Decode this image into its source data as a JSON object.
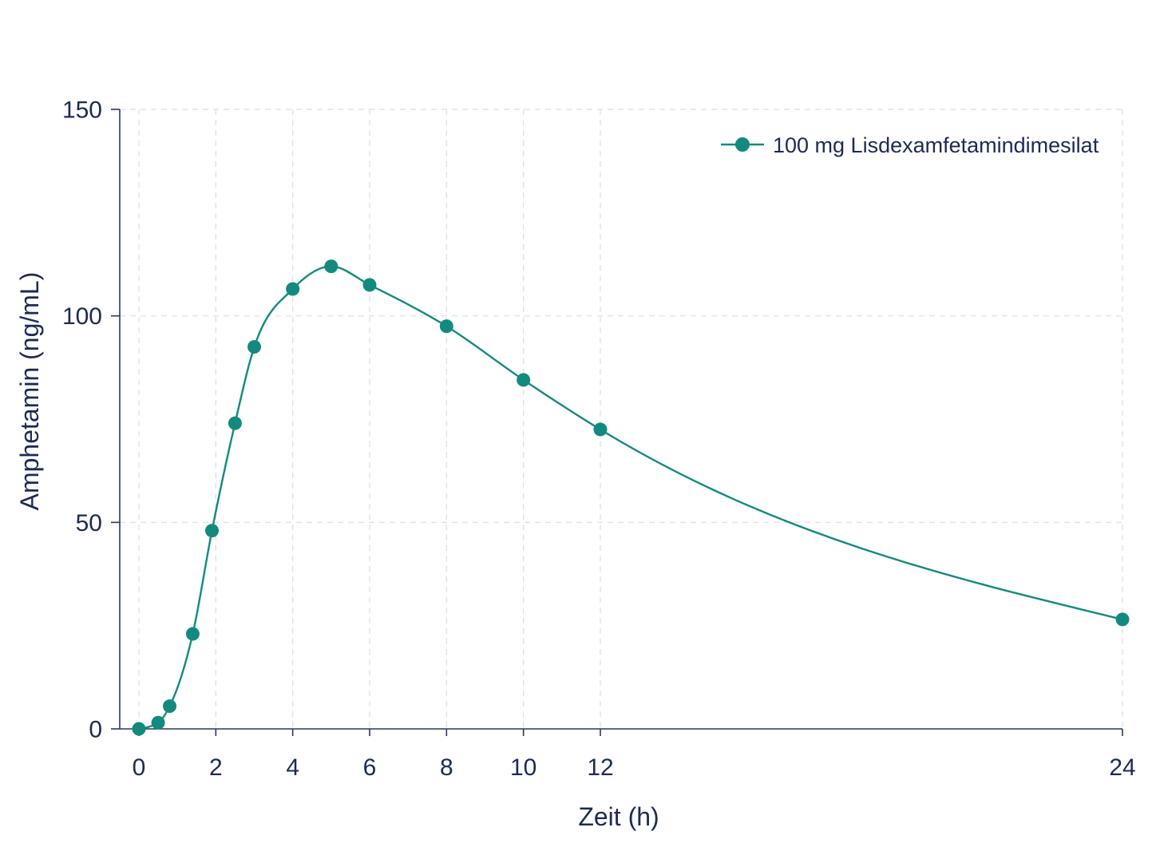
{
  "chart_data": {
    "type": "line",
    "xlabel": "Zeit (h)",
    "ylabel": "Amphetamin (ng/mL)",
    "xlim": [
      0,
      24
    ],
    "ylim": [
      0,
      150
    ],
    "xticks": [
      0,
      2,
      4,
      6,
      8,
      10,
      12,
      24
    ],
    "yticks": [
      0,
      50,
      100,
      150
    ],
    "grid": true,
    "legend": "top-right",
    "series": [
      {
        "name": "100 mg Lisdexamfetamindimesilat",
        "color": "#138a7f",
        "x": [
          0,
          0.5,
          0.8,
          1.4,
          1.9,
          2.5,
          3,
          4,
          5,
          6,
          8,
          10,
          12,
          24
        ],
        "y": [
          0,
          1.5,
          5.5,
          23,
          48,
          74,
          92.5,
          106.5,
          112,
          107.5,
          97.5,
          84.5,
          72.5,
          26.5
        ]
      }
    ]
  }
}
